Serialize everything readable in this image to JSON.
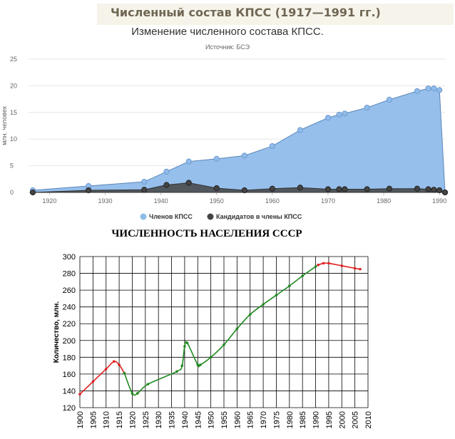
{
  "banner": {
    "text": "Численный состав КПСС (1917—1991 гг.)"
  },
  "colors": {
    "members": "#90bceb",
    "members_line": "#5b88b8",
    "candidates": "#444444",
    "banner_bg": "#f6f3ea",
    "banner_text": "#6f6654",
    "pop_green": "#1f8a1f",
    "pop_red": "#e02020"
  },
  "chart_data": [
    {
      "type": "area",
      "title": "Изменение численного состава КПСС.",
      "subtitle": "Источник: БСЭ",
      "ylabel": "млн. человек",
      "xlabel": "",
      "xlim": [
        1917,
        1991
      ],
      "ylim": [
        0,
        25
      ],
      "x_ticks": [
        1920,
        1930,
        1940,
        1950,
        1960,
        1970,
        1980,
        1990
      ],
      "y_ticks": [
        0,
        5,
        10,
        15,
        20,
        25
      ],
      "grid": "horizontal",
      "legend": "bottom",
      "series": [
        {
          "name": "Членов КПСС",
          "x": [
            1917,
            1927,
            1937,
            1941,
            1945,
            1950,
            1955,
            1960,
            1965,
            1970,
            1972,
            1973,
            1977,
            1981,
            1986,
            1988,
            1989,
            1990,
            1991
          ],
          "y": [
            0.4,
            1.2,
            2.0,
            3.9,
            5.8,
            6.3,
            6.9,
            8.7,
            11.7,
            14.0,
            14.6,
            14.8,
            15.9,
            17.4,
            19.0,
            19.5,
            19.5,
            19.2,
            0.0
          ]
        },
        {
          "name": "Кандидатов в члены КПСС",
          "x": [
            1917,
            1927,
            1937,
            1941,
            1945,
            1950,
            1955,
            1960,
            1965,
            1970,
            1972,
            1973,
            1977,
            1981,
            1986,
            1988,
            1989,
            1990,
            1991
          ],
          "y": [
            0.0,
            0.4,
            0.5,
            1.4,
            1.8,
            0.8,
            0.4,
            0.7,
            0.9,
            0.6,
            0.6,
            0.6,
            0.6,
            0.7,
            0.7,
            0.6,
            0.5,
            0.4,
            0.0
          ]
        }
      ]
    },
    {
      "type": "line",
      "title": "ЧИСЛЕННОСТЬ НАСЕЛЕНИЯ СССР",
      "xlabel": "",
      "ylabel": "Количество, млн.",
      "xlim": [
        1900,
        2010
      ],
      "ylim": [
        120,
        300
      ],
      "x_ticks": [
        1900,
        1905,
        1910,
        1915,
        1920,
        1925,
        1930,
        1935,
        1940,
        1945,
        1950,
        1955,
        1960,
        1965,
        1970,
        1975,
        1980,
        1985,
        1990,
        1995,
        2000,
        2005,
        2010
      ],
      "y_ticks": [
        120,
        140,
        160,
        180,
        200,
        220,
        240,
        260,
        280,
        300
      ],
      "grid": true,
      "series": [
        {
          "segment": "red",
          "x": [
            1900,
            1905,
            1910,
            1913,
            1915,
            1917
          ],
          "y": [
            136,
            151,
            166,
            175,
            171,
            161
          ]
        },
        {
          "segment": "green",
          "x": [
            1917,
            1920,
            1922,
            1926,
            1937,
            1939,
            1940,
            1941,
            1945,
            1946,
            1950,
            1955,
            1960,
            1965,
            1970,
            1975,
            1980,
            1985,
            1990,
            1991
          ],
          "y": [
            161,
            137,
            137,
            148,
            163,
            170,
            193,
            197,
            171,
            171,
            180,
            195,
            214,
            231,
            243,
            254,
            265,
            277,
            288,
            290
          ]
        },
        {
          "segment": "red",
          "x": [
            1991,
            1993,
            1995,
            2000,
            2005,
            2007
          ],
          "y": [
            290,
            292,
            292,
            289,
            286,
            285
          ]
        }
      ]
    }
  ]
}
